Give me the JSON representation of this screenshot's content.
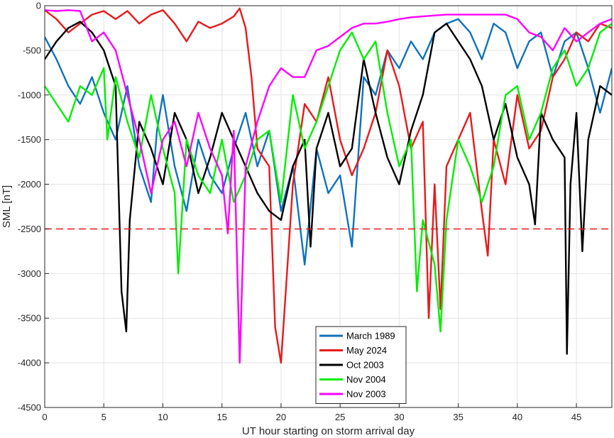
{
  "chart_data": {
    "type": "line",
    "xlabel": "UT hour starting on storm arrival day",
    "ylabel": "SML [nT]",
    "xlim": [
      0,
      48
    ],
    "ylim": [
      -4500,
      0
    ],
    "xticks": [
      0,
      5,
      10,
      15,
      20,
      25,
      30,
      35,
      40,
      45
    ],
    "yticks": [
      0,
      -500,
      -1000,
      -1500,
      -2000,
      -2500,
      -3000,
      -3500,
      -4000,
      -4500
    ],
    "grid": true,
    "legend_position": "bottom-center",
    "reference_line": {
      "y": -2500,
      "style": "dashed",
      "color": "#e8191b"
    },
    "series": [
      {
        "name": "March 1989",
        "color": "#0f72bd",
        "points": [
          [
            0,
            -350
          ],
          [
            1,
            -600
          ],
          [
            2,
            -900
          ],
          [
            3,
            -1100
          ],
          [
            4,
            -800
          ],
          [
            5,
            -1200
          ],
          [
            6,
            -1500
          ],
          [
            7,
            -900
          ],
          [
            8,
            -1800
          ],
          [
            9,
            -2200
          ],
          [
            9.5,
            -1400
          ],
          [
            10,
            -1000
          ],
          [
            11,
            -1800
          ],
          [
            12,
            -2300
          ],
          [
            13,
            -1500
          ],
          [
            14,
            -1900
          ],
          [
            15,
            -2100
          ],
          [
            16,
            -1600
          ],
          [
            17,
            -1200
          ],
          [
            18,
            -1800
          ],
          [
            19,
            -1400
          ],
          [
            20,
            -2300
          ],
          [
            21,
            -1800
          ],
          [
            22,
            -2900
          ],
          [
            23,
            -1600
          ],
          [
            24,
            -2100
          ],
          [
            25,
            -1900
          ],
          [
            26,
            -2700
          ],
          [
            27,
            -800
          ],
          [
            28,
            -1000
          ],
          [
            29,
            -500
          ],
          [
            30,
            -700
          ],
          [
            31,
            -400
          ],
          [
            32,
            -600
          ],
          [
            33,
            -300
          ],
          [
            34,
            -200
          ],
          [
            35,
            -150
          ],
          [
            36,
            -300
          ],
          [
            37,
            -600
          ],
          [
            38,
            -200
          ],
          [
            39,
            -300
          ],
          [
            40,
            -700
          ],
          [
            41,
            -400
          ],
          [
            42,
            -300
          ],
          [
            43,
            -800
          ],
          [
            44,
            -400
          ],
          [
            45,
            -300
          ],
          [
            46,
            -700
          ],
          [
            47,
            -1200
          ],
          [
            48,
            -700
          ]
        ]
      },
      {
        "name": "May 2024",
        "color": "#e8191b",
        "points": [
          [
            0,
            -50
          ],
          [
            1,
            -150
          ],
          [
            2,
            -300
          ],
          [
            3,
            -200
          ],
          [
            4,
            -100
          ],
          [
            5,
            -60
          ],
          [
            6,
            -150
          ],
          [
            7,
            -60
          ],
          [
            8,
            -200
          ],
          [
            9,
            -100
          ],
          [
            10,
            -50
          ],
          [
            11,
            -200
          ],
          [
            12,
            -400
          ],
          [
            13,
            -180
          ],
          [
            14,
            -250
          ],
          [
            15,
            -200
          ],
          [
            16,
            -120
          ],
          [
            16.5,
            -30
          ],
          [
            17,
            -250
          ],
          [
            17.5,
            -800
          ],
          [
            18,
            -1600
          ],
          [
            19,
            -1800
          ],
          [
            19.5,
            -3600
          ],
          [
            20,
            -4000
          ],
          [
            21,
            -2000
          ],
          [
            22,
            -1100
          ],
          [
            23,
            -1300
          ],
          [
            24,
            -800
          ],
          [
            25,
            -1500
          ],
          [
            26,
            -1900
          ],
          [
            27,
            -1600
          ],
          [
            28,
            -1200
          ],
          [
            29,
            -500
          ],
          [
            30,
            -900
          ],
          [
            31,
            -1600
          ],
          [
            32,
            -1300
          ],
          [
            32.5,
            -3500
          ],
          [
            33,
            -2000
          ],
          [
            33.5,
            -3400
          ],
          [
            34,
            -1800
          ],
          [
            35,
            -1500
          ],
          [
            36,
            -1200
          ],
          [
            37,
            -2300
          ],
          [
            37.5,
            -2800
          ],
          [
            38,
            -1500
          ],
          [
            39,
            -2000
          ],
          [
            40,
            -1000
          ],
          [
            41,
            -1600
          ],
          [
            42,
            -1400
          ],
          [
            43,
            -800
          ],
          [
            44,
            -600
          ],
          [
            45,
            -300
          ],
          [
            46,
            -400
          ],
          [
            47,
            -200
          ],
          [
            48,
            -250
          ]
        ]
      },
      {
        "name": "Oct 2003",
        "color": "#000000",
        "points": [
          [
            0,
            -600
          ],
          [
            1,
            -400
          ],
          [
            2,
            -250
          ],
          [
            3,
            -180
          ],
          [
            4,
            -300
          ],
          [
            5,
            -500
          ],
          [
            6,
            -900
          ],
          [
            6.5,
            -3200
          ],
          [
            6.9,
            -3650
          ],
          [
            7.2,
            -2400
          ],
          [
            8,
            -1300
          ],
          [
            9,
            -1600
          ],
          [
            10,
            -2000
          ],
          [
            11,
            -1200
          ],
          [
            12,
            -1500
          ],
          [
            13,
            -2100
          ],
          [
            14,
            -1700
          ],
          [
            15,
            -1200
          ],
          [
            16,
            -1500
          ],
          [
            17,
            -1800
          ],
          [
            18,
            -2100
          ],
          [
            19,
            -2300
          ],
          [
            20,
            -2400
          ],
          [
            21,
            -1800
          ],
          [
            22,
            -1500
          ],
          [
            22.5,
            -2700
          ],
          [
            23,
            -1600
          ],
          [
            24,
            -1200
          ],
          [
            25,
            -1800
          ],
          [
            26,
            -1600
          ],
          [
            27,
            -600
          ],
          [
            28,
            -1200
          ],
          [
            29,
            -1700
          ],
          [
            30,
            -2000
          ],
          [
            31,
            -1400
          ],
          [
            32,
            -1000
          ],
          [
            33,
            -300
          ],
          [
            34,
            -200
          ],
          [
            35,
            -400
          ],
          [
            36,
            -600
          ],
          [
            37,
            -900
          ],
          [
            38,
            -1500
          ],
          [
            39,
            -1100
          ],
          [
            40,
            -1700
          ],
          [
            41,
            -2000
          ],
          [
            41.5,
            -2450
          ],
          [
            42,
            -1200
          ],
          [
            43,
            -1500
          ],
          [
            44,
            -1700
          ],
          [
            44.2,
            -3900
          ],
          [
            44.5,
            -2000
          ],
          [
            45,
            -1200
          ],
          [
            45.5,
            -2750
          ],
          [
            46,
            -1500
          ],
          [
            47,
            -900
          ],
          [
            48,
            -1000
          ]
        ]
      },
      {
        "name": "Nov 2004",
        "color": "#00ef00",
        "points": [
          [
            0,
            -900
          ],
          [
            1,
            -1100
          ],
          [
            2,
            -1300
          ],
          [
            3,
            -900
          ],
          [
            4,
            -1000
          ],
          [
            5,
            -700
          ],
          [
            5.3,
            -1500
          ],
          [
            6,
            -800
          ],
          [
            7,
            -1300
          ],
          [
            8,
            -1700
          ],
          [
            9,
            -1000
          ],
          [
            10,
            -1600
          ],
          [
            11,
            -2100
          ],
          [
            11.3,
            -3000
          ],
          [
            12,
            -1500
          ],
          [
            13,
            -1900
          ],
          [
            14,
            -2100
          ],
          [
            15,
            -1500
          ],
          [
            16,
            -2200
          ],
          [
            17,
            -1900
          ],
          [
            18,
            -1500
          ],
          [
            19,
            -1400
          ],
          [
            20,
            -2200
          ],
          [
            21,
            -1000
          ],
          [
            22,
            -1600
          ],
          [
            23,
            -1300
          ],
          [
            24,
            -900
          ],
          [
            25,
            -500
          ],
          [
            26,
            -300
          ],
          [
            27,
            -600
          ],
          [
            28,
            -400
          ],
          [
            29,
            -1200
          ],
          [
            30,
            -1800
          ],
          [
            31,
            -1500
          ],
          [
            31.5,
            -3200
          ],
          [
            32,
            -2400
          ],
          [
            33,
            -2900
          ],
          [
            33.5,
            -3650
          ],
          [
            34,
            -2400
          ],
          [
            35,
            -1500
          ],
          [
            36,
            -1800
          ],
          [
            37,
            -2200
          ],
          [
            38,
            -1800
          ],
          [
            39,
            -1000
          ],
          [
            40,
            -900
          ],
          [
            41,
            -1500
          ],
          [
            42,
            -1200
          ],
          [
            43,
            -700
          ],
          [
            44,
            -500
          ],
          [
            45,
            -900
          ],
          [
            46,
            -700
          ],
          [
            47,
            -300
          ],
          [
            48,
            -200
          ]
        ]
      },
      {
        "name": "Nov 2003",
        "color": "#ff00ff",
        "points": [
          [
            0,
            -50
          ],
          [
            1,
            -60
          ],
          [
            2,
            -50
          ],
          [
            3,
            -60
          ],
          [
            4,
            -400
          ],
          [
            5,
            -300
          ],
          [
            6,
            -500
          ],
          [
            7,
            -1000
          ],
          [
            8,
            -1500
          ],
          [
            9,
            -2100
          ],
          [
            10,
            -1500
          ],
          [
            11,
            -1300
          ],
          [
            12,
            -1800
          ],
          [
            13,
            -1200
          ],
          [
            14,
            -1600
          ],
          [
            15,
            -1900
          ],
          [
            15.5,
            -2550
          ],
          [
            16,
            -1400
          ],
          [
            16.5,
            -4000
          ],
          [
            17,
            -1800
          ],
          [
            18,
            -1300
          ],
          [
            19,
            -900
          ],
          [
            20,
            -700
          ],
          [
            21,
            -800
          ],
          [
            22,
            -800
          ],
          [
            23,
            -500
          ],
          [
            24,
            -450
          ],
          [
            25,
            -350
          ],
          [
            26,
            -250
          ],
          [
            27,
            -200
          ],
          [
            28,
            -200
          ],
          [
            29,
            -180
          ],
          [
            30,
            -150
          ],
          [
            31,
            -130
          ],
          [
            32,
            -120
          ],
          [
            33,
            -110
          ],
          [
            34,
            -100
          ],
          [
            35,
            -100
          ],
          [
            36,
            -100
          ],
          [
            37,
            -100
          ],
          [
            38,
            -100
          ],
          [
            39,
            -100
          ],
          [
            40,
            -150
          ],
          [
            41,
            -300
          ],
          [
            42,
            -350
          ],
          [
            43,
            -500
          ],
          [
            44,
            -250
          ],
          [
            45,
            -400
          ],
          [
            46,
            -300
          ],
          [
            47,
            -200
          ],
          [
            48,
            -150
          ]
        ]
      }
    ]
  }
}
